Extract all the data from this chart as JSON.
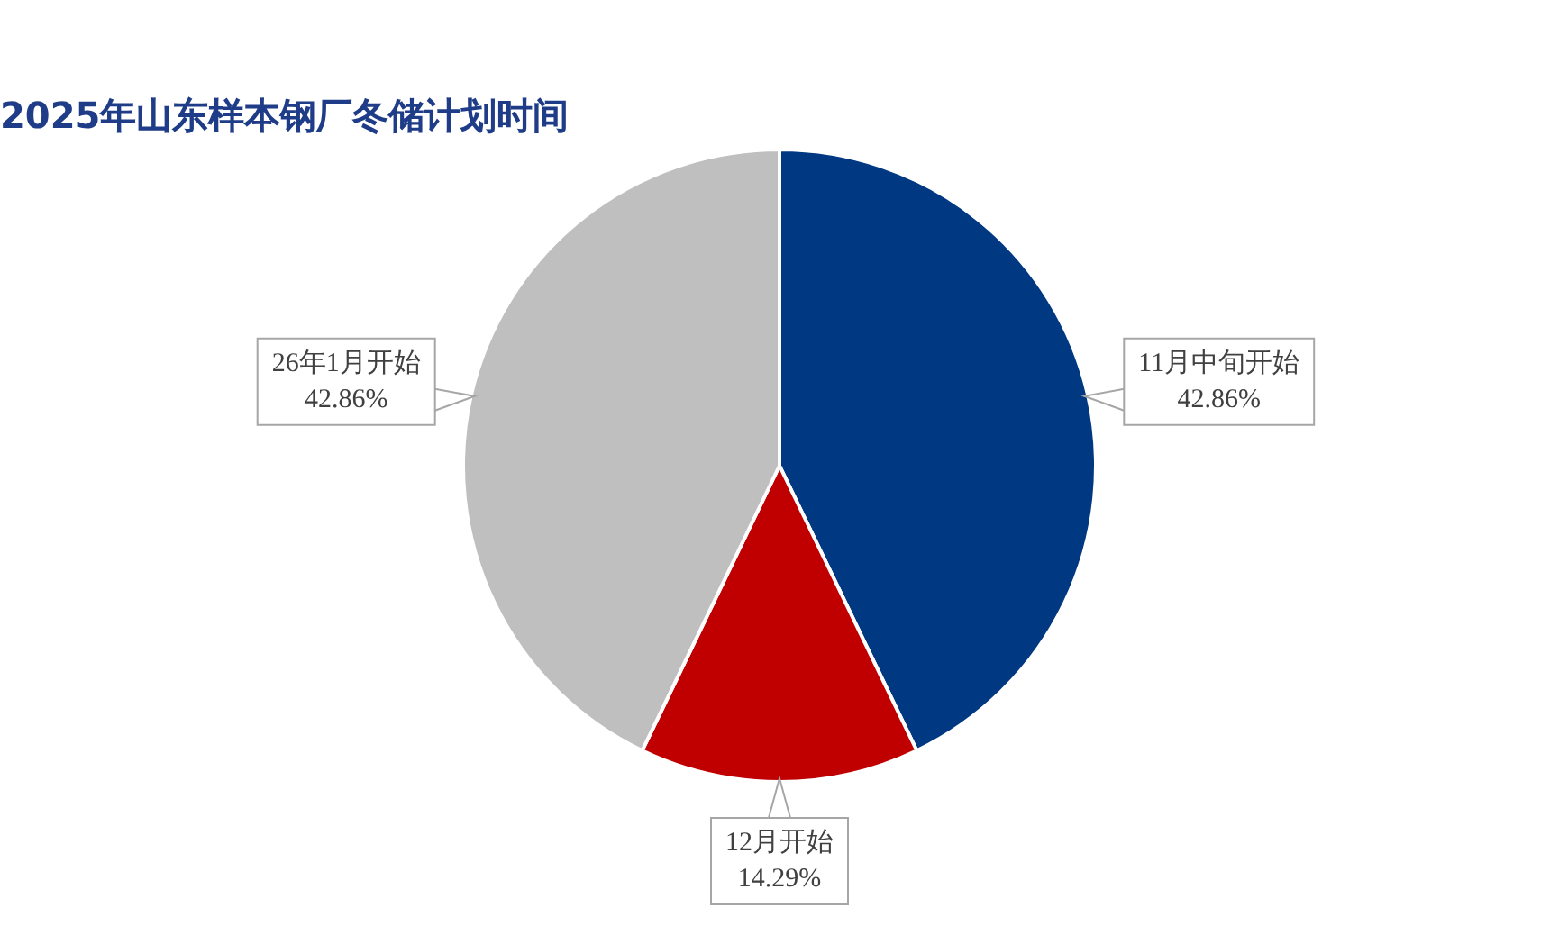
{
  "chart_data": {
    "type": "pie",
    "title": "2025年山东样本钢厂冬储计划时间",
    "categories": [
      "11月中旬开始",
      "12月开始",
      "26年1月开始"
    ],
    "values": [
      42.86,
      14.29,
      42.86
    ],
    "colors": [
      "#003882",
      "#c00000",
      "#bfbfbf"
    ],
    "value_labels": [
      "42.86%",
      "14.29%",
      "42.86%"
    ],
    "legend": false
  }
}
